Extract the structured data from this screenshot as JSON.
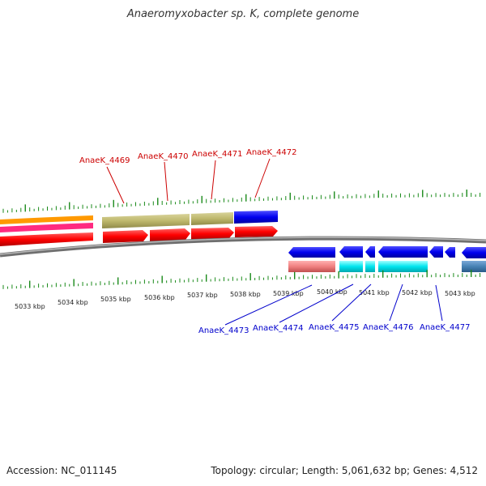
{
  "title": "Anaeromyxobacter sp. K, complete genome",
  "footer": {
    "accession": "Accession: NC_011145",
    "summary": "Topology: circular; Length: 5,061,632 bp; Genes: 4,512"
  },
  "axis_labels": [
    "5033 kbp",
    "5034 kbp",
    "5035 kbp",
    "5036 kbp",
    "5037 kbp",
    "5038 kbp",
    "5039 kbp",
    "5040 kbp",
    "5041 kbp",
    "5042 kbp",
    "5043 kbp"
  ],
  "top_genes": [
    {
      "label": "AnaeK_4469",
      "color": "#cc0000"
    },
    {
      "label": "AnaeK_4470",
      "color": "#cc0000"
    },
    {
      "label": "AnaeK_4471",
      "color": "#cc0000"
    },
    {
      "label": "AnaeK_4472",
      "color": "#cc0000"
    }
  ],
  "bottom_genes": [
    {
      "label": "AnaeK_4473",
      "color": "#0000cc"
    },
    {
      "label": "AnaeK_4474",
      "color": "#0000cc"
    },
    {
      "label": "AnaeK_4475",
      "color": "#0000cc"
    },
    {
      "label": "AnaeK_4476",
      "color": "#0000cc"
    },
    {
      "label": "AnaeK_4477",
      "color": "#0000cc"
    }
  ],
  "colors": {
    "forward_cds": "#ff0000",
    "reverse_cds": "#0000ee",
    "backbone": "#888888",
    "ticks": "#1a8a1a",
    "olive_feature": "#bdb76b",
    "cyan_feature": "#00e5ee",
    "pink_feature": "#f08080",
    "steel_feature": "#4682b4"
  }
}
